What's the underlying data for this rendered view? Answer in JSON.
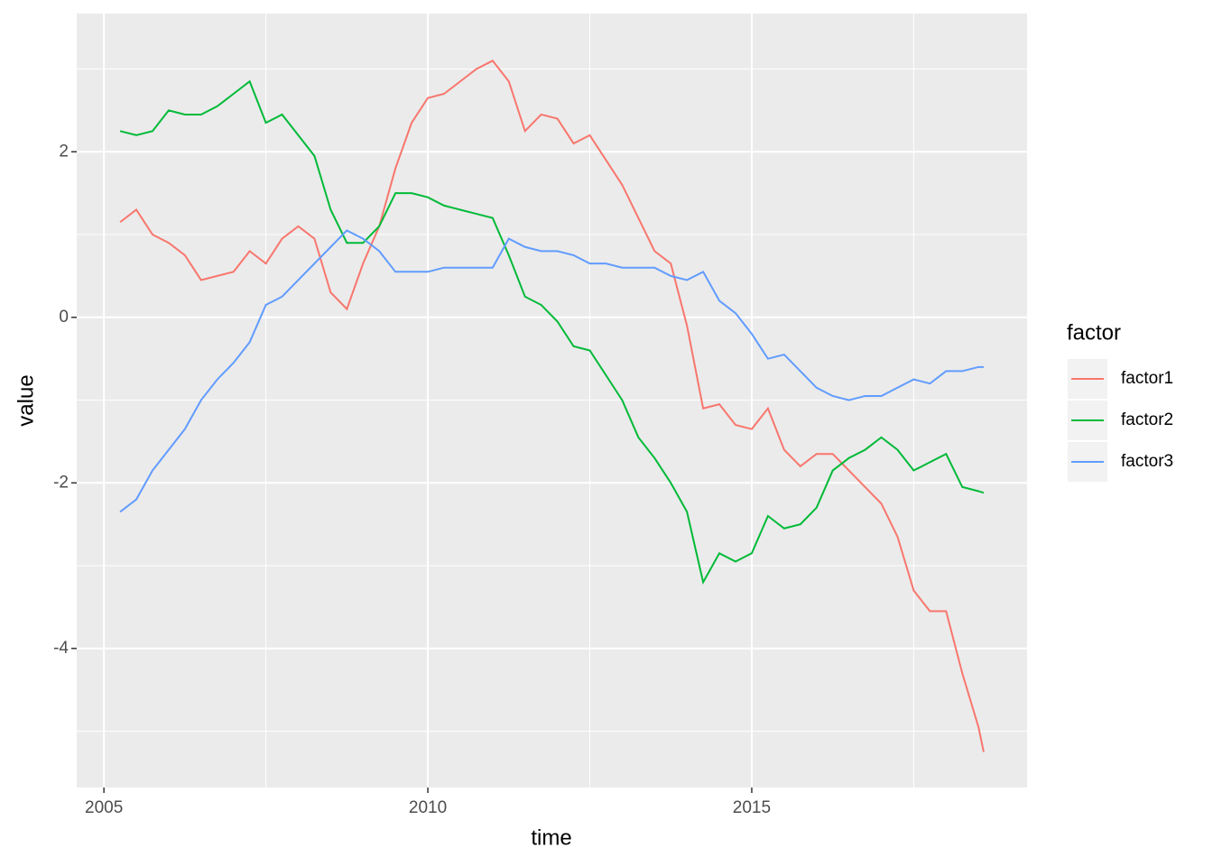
{
  "chart_data": {
    "type": "line",
    "x_label": "time",
    "y_label": "value",
    "legend_title": "factor",
    "x": [
      2005.25,
      2005.5,
      2005.75,
      2006,
      2006.25,
      2006.5,
      2006.75,
      2007,
      2007.25,
      2007.5,
      2007.75,
      2008,
      2008.25,
      2008.5,
      2008.75,
      2009,
      2009.25,
      2009.5,
      2009.75,
      2010,
      2010.25,
      2010.5,
      2010.75,
      2011,
      2011.25,
      2011.5,
      2011.75,
      2012,
      2012.25,
      2012.5,
      2012.75,
      2013,
      2013.25,
      2013.5,
      2013.75,
      2014,
      2014.25,
      2014.5,
      2014.75,
      2015,
      2015.25,
      2015.5,
      2015.75,
      2016,
      2016.25,
      2016.5,
      2016.75,
      2017,
      2017.25,
      2017.5,
      2017.75,
      2018,
      2018.25,
      2018.5,
      2018.58
    ],
    "series": [
      {
        "name": "factor1",
        "color": "#f8766d",
        "values": [
          1.15,
          1.3,
          1.0,
          0.9,
          0.75,
          0.45,
          0.5,
          0.55,
          0.8,
          0.65,
          0.95,
          1.1,
          0.95,
          0.3,
          0.1,
          0.65,
          1.1,
          1.8,
          2.35,
          2.65,
          2.7,
          2.85,
          3.0,
          3.1,
          2.85,
          2.25,
          2.45,
          2.4,
          2.1,
          2.2,
          1.9,
          1.6,
          1.2,
          0.8,
          0.65,
          -0.1,
          -1.1,
          -1.05,
          -1.3,
          -1.35,
          -1.1,
          -1.6,
          -1.8,
          -1.65,
          -1.65,
          -1.85,
          -2.05,
          -2.25,
          -2.65,
          -3.3,
          -3.55,
          -3.55,
          -4.3,
          -4.95,
          -5.25
        ]
      },
      {
        "name": "factor2",
        "color": "#00ba38",
        "values": [
          2.25,
          2.2,
          2.25,
          2.5,
          2.45,
          2.45,
          2.55,
          2.7,
          2.85,
          2.35,
          2.45,
          2.2,
          1.95,
          1.3,
          0.9,
          0.9,
          1.1,
          1.5,
          1.5,
          1.45,
          1.35,
          1.3,
          1.25,
          1.2,
          0.75,
          0.25,
          0.15,
          -0.05,
          -0.35,
          -0.4,
          -0.7,
          -1.0,
          -1.45,
          -1.7,
          -2.0,
          -2.35,
          -3.2,
          -2.85,
          -2.95,
          -2.85,
          -2.4,
          -2.55,
          -2.5,
          -2.3,
          -1.85,
          -1.7,
          -1.6,
          -1.45,
          -1.6,
          -1.85,
          -1.75,
          -1.65,
          -2.05,
          -2.1,
          -2.12
        ]
      },
      {
        "name": "factor3",
        "color": "#619cff",
        "values": [
          -2.35,
          -2.2,
          -1.85,
          -1.6,
          -1.35,
          -1.0,
          -0.75,
          -0.55,
          -0.3,
          0.15,
          0.25,
          0.45,
          0.65,
          0.85,
          1.05,
          0.95,
          0.8,
          0.55,
          0.55,
          0.55,
          0.6,
          0.6,
          0.6,
          0.6,
          0.95,
          0.85,
          0.8,
          0.8,
          0.75,
          0.65,
          0.65,
          0.6,
          0.6,
          0.6,
          0.5,
          0.45,
          0.55,
          0.2,
          0.05,
          -0.2,
          -0.5,
          -0.45,
          -0.65,
          -0.85,
          -0.95,
          -1.0,
          -0.95,
          -0.95,
          -0.85,
          -0.75,
          -0.8,
          -0.65,
          -0.65,
          -0.6,
          -0.6
        ]
      }
    ],
    "xlim": [
      2004.58,
      2019.25
    ],
    "xticks": [
      2005,
      2010,
      2015
    ],
    "ylim": [
      -5.68,
      3.67
    ],
    "yticks": [
      -4,
      -2,
      0,
      2
    ],
    "grid": true
  }
}
